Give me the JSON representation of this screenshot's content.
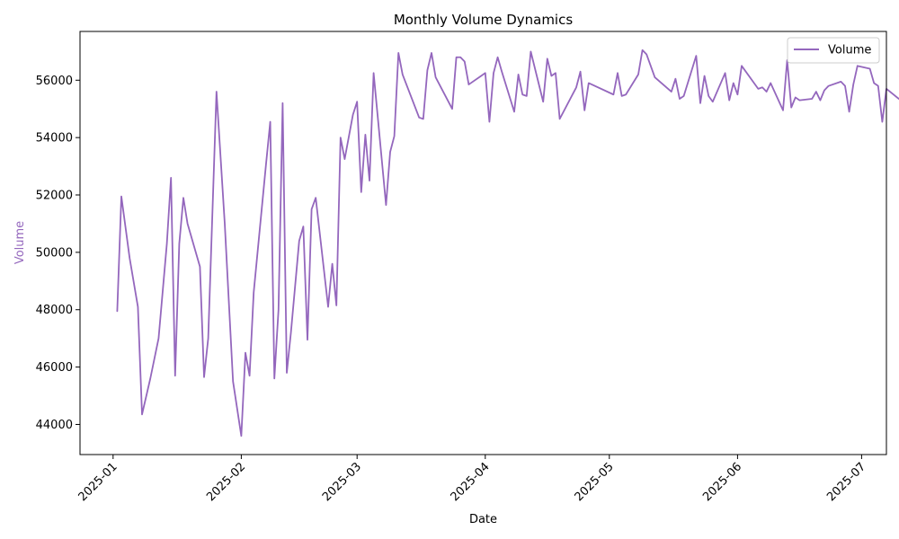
{
  "chart_data": {
    "type": "line",
    "title": "Monthly Volume Dynamics",
    "xlabel": "Date",
    "ylabel": "Volume",
    "x_tick_labels": [
      "2025-01",
      "2025-02",
      "2025-03",
      "2025-04",
      "2025-05",
      "2025-06",
      "2025-07"
    ],
    "x_tick_dates": [
      "2025-01-01",
      "2025-02-01",
      "2025-03-01",
      "2025-04-01",
      "2025-05-01",
      "2025-06-01",
      "2025-07-01"
    ],
    "xlim": [
      "2024-12-24",
      "2025-07-07"
    ],
    "y_ticks": [
      44000,
      46000,
      48000,
      50000,
      52000,
      54000,
      56000
    ],
    "y_tick_labels": [
      "44000",
      "46000",
      "48000",
      "50000",
      "52000",
      "54000",
      "56000"
    ],
    "ylim": [
      42950,
      57700
    ],
    "grid": false,
    "legend_position": "top-right",
    "colors": {
      "series": "#9467bd"
    },
    "series": [
      {
        "name": "Volume",
        "points": [
          [
            "2025-01-02",
            47950
          ],
          [
            "2025-01-03",
            51950
          ],
          [
            "2025-01-05",
            49800
          ],
          [
            "2025-01-07",
            48100
          ],
          [
            "2025-01-08",
            44350
          ],
          [
            "2025-01-10",
            45600
          ],
          [
            "2025-01-12",
            47000
          ],
          [
            "2025-01-14",
            50300
          ],
          [
            "2025-01-15",
            52600
          ],
          [
            "2025-01-16",
            45700
          ],
          [
            "2025-01-17",
            50300
          ],
          [
            "2025-01-18",
            51900
          ],
          [
            "2025-01-19",
            51000
          ],
          [
            "2025-01-22",
            49500
          ],
          [
            "2025-01-23",
            45650
          ],
          [
            "2025-01-24",
            47000
          ],
          [
            "2025-01-26",
            55600
          ],
          [
            "2025-01-28",
            51000
          ],
          [
            "2025-01-30",
            45500
          ],
          [
            "2025-02-01",
            43600
          ],
          [
            "2025-02-02",
            46500
          ],
          [
            "2025-02-03",
            45700
          ],
          [
            "2025-02-04",
            48600
          ],
          [
            "2025-02-07",
            53100
          ],
          [
            "2025-02-08",
            54550
          ],
          [
            "2025-02-09",
            45600
          ],
          [
            "2025-02-10",
            48000
          ],
          [
            "2025-02-11",
            55200
          ],
          [
            "2025-02-12",
            45800
          ],
          [
            "2025-02-13",
            47200
          ],
          [
            "2025-02-15",
            50400
          ],
          [
            "2025-02-16",
            50900
          ],
          [
            "2025-02-17",
            46950
          ],
          [
            "2025-02-18",
            51500
          ],
          [
            "2025-02-19",
            51900
          ],
          [
            "2025-02-22",
            48100
          ],
          [
            "2025-02-23",
            49600
          ],
          [
            "2025-02-24",
            48150
          ],
          [
            "2025-02-25",
            54000
          ],
          [
            "2025-02-26",
            53250
          ],
          [
            "2025-02-28",
            54800
          ],
          [
            "2025-03-01",
            55250
          ],
          [
            "2025-03-02",
            52100
          ],
          [
            "2025-03-03",
            54100
          ],
          [
            "2025-03-04",
            52500
          ],
          [
            "2025-03-05",
            56250
          ],
          [
            "2025-03-08",
            51650
          ],
          [
            "2025-03-09",
            53500
          ],
          [
            "2025-03-10",
            54050
          ],
          [
            "2025-03-11",
            56950
          ],
          [
            "2025-03-12",
            56200
          ],
          [
            "2025-03-16",
            54700
          ],
          [
            "2025-03-17",
            54650
          ],
          [
            "2025-03-18",
            56350
          ],
          [
            "2025-03-19",
            56950
          ],
          [
            "2025-03-20",
            56100
          ],
          [
            "2025-03-24",
            55000
          ],
          [
            "2025-03-25",
            56800
          ],
          [
            "2025-03-26",
            56800
          ],
          [
            "2025-03-27",
            56650
          ],
          [
            "2025-03-28",
            55850
          ],
          [
            "2025-03-31",
            56150
          ],
          [
            "2025-04-01",
            56250
          ],
          [
            "2025-04-02",
            54550
          ],
          [
            "2025-04-03",
            56250
          ],
          [
            "2025-04-04",
            56800
          ],
          [
            "2025-04-05",
            56300
          ],
          [
            "2025-04-08",
            54900
          ],
          [
            "2025-04-09",
            56200
          ],
          [
            "2025-04-10",
            55500
          ],
          [
            "2025-04-11",
            55450
          ],
          [
            "2025-04-12",
            57000
          ],
          [
            "2025-04-15",
            55250
          ],
          [
            "2025-04-16",
            56750
          ],
          [
            "2025-04-17",
            56150
          ],
          [
            "2025-04-18",
            56250
          ],
          [
            "2025-04-19",
            54650
          ],
          [
            "2025-04-23",
            55750
          ],
          [
            "2025-04-24",
            56300
          ],
          [
            "2025-04-25",
            54950
          ],
          [
            "2025-04-26",
            55900
          ],
          [
            "2025-05-02",
            55500
          ],
          [
            "2025-05-03",
            56250
          ],
          [
            "2025-05-04",
            55450
          ],
          [
            "2025-05-05",
            55500
          ],
          [
            "2025-05-08",
            56200
          ],
          [
            "2025-05-09",
            57050
          ],
          [
            "2025-05-10",
            56900
          ],
          [
            "2025-05-12",
            56100
          ],
          [
            "2025-05-16",
            55600
          ],
          [
            "2025-05-17",
            56050
          ],
          [
            "2025-05-18",
            55350
          ],
          [
            "2025-05-19",
            55450
          ],
          [
            "2025-05-22",
            56850
          ],
          [
            "2025-05-23",
            55200
          ],
          [
            "2025-05-24",
            56150
          ],
          [
            "2025-05-25",
            55450
          ],
          [
            "2025-05-26",
            55250
          ],
          [
            "2025-05-29",
            56250
          ],
          [
            "2025-05-30",
            55300
          ],
          [
            "2025-05-31",
            55900
          ],
          [
            "2025-06-01",
            55500
          ],
          [
            "2025-06-02",
            56500
          ],
          [
            "2025-06-06",
            55700
          ],
          [
            "2025-06-07",
            55750
          ],
          [
            "2025-06-08",
            55600
          ],
          [
            "2025-06-09",
            55900
          ],
          [
            "2025-06-12",
            54950
          ],
          [
            "2025-06-13",
            56700
          ],
          [
            "2025-06-14",
            55050
          ],
          [
            "2025-06-15",
            55400
          ],
          [
            "2025-06-16",
            55300
          ],
          [
            "2025-06-19",
            55350
          ],
          [
            "2025-06-20",
            55600
          ],
          [
            "2025-06-21",
            55300
          ],
          [
            "2025-06-22",
            55650
          ],
          [
            "2025-06-23",
            55800
          ],
          [
            "2025-06-26",
            55950
          ],
          [
            "2025-06-27",
            55800
          ],
          [
            "2025-06-28",
            54900
          ],
          [
            "2025-06-29",
            55850
          ],
          [
            "2025-06-30",
            56500
          ],
          [
            "2025-07-03",
            56400
          ],
          [
            "2025-07-04",
            55900
          ],
          [
            "2025-07-05",
            55800
          ],
          [
            "2025-07-06",
            54550
          ],
          [
            "2025-07-07",
            55700
          ],
          [
            "2025-07-10",
            55350
          ],
          [
            "2025-07-11",
            55450
          ]
        ]
      }
    ]
  }
}
